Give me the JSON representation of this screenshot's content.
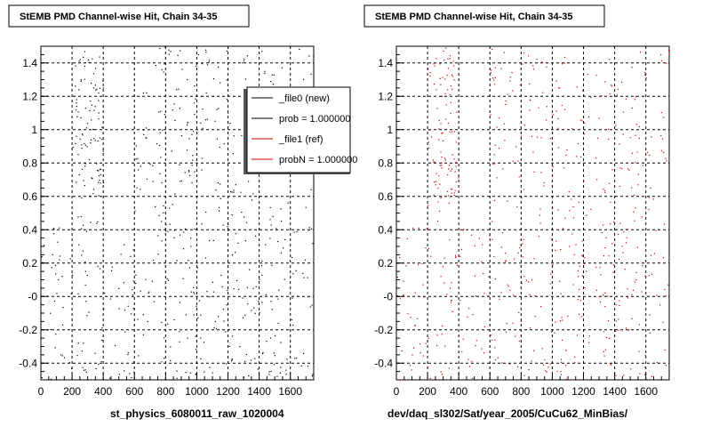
{
  "chart_data": [
    {
      "type": "scatter",
      "title": "StEMB PMD Channel-wise Hit, Chain 34-35",
      "xlabel": "st_physics_6080011_raw_1020004",
      "ylabel": "",
      "xlim": [
        0,
        1750
      ],
      "ylim": [
        -0.5,
        1.5
      ],
      "xticks": [
        "0",
        "200",
        "400",
        "600",
        "800",
        "1000",
        "1200",
        "1400",
        "1600"
      ],
      "yticks": [
        "-0.4",
        "-0.2",
        "-0",
        "0.2",
        "0.4",
        "0.6",
        "0.8",
        "1",
        "1.2",
        "1.4"
      ],
      "grid": true,
      "marker_color": "#000000",
      "legend": {
        "placement": "top-right",
        "entries": [
          {
            "label": "_file0 (new)",
            "color": "#000000"
          },
          {
            "label": "prob = 1.000000",
            "color": "#000000"
          },
          {
            "label": "_file1 (ref)",
            "color": "#cc0000"
          },
          {
            "label": "probN = 1.000000",
            "color": "#cc0000"
          }
        ]
      },
      "regions": [
        {
          "x": [
            0,
            200
          ],
          "y": [
            -0.5,
            0.45
          ],
          "density": 0.55
        },
        {
          "x": [
            200,
            400
          ],
          "y": [
            0.6,
            1.5
          ],
          "density": 1.6
        },
        {
          "x": [
            200,
            400
          ],
          "y": [
            -0.5,
            0.6
          ],
          "density": 0.5
        },
        {
          "x": [
            400,
            600
          ],
          "y": [
            -0.5,
            0.45
          ],
          "density": 0.5
        },
        {
          "x": [
            600,
            1200
          ],
          "y": [
            -0.5,
            1.5
          ],
          "density": 0.55
        },
        {
          "x": [
            1200,
            1750
          ],
          "y": [
            -0.5,
            1.5
          ],
          "density": 0.5
        }
      ]
    },
    {
      "type": "scatter",
      "title": "StEMB PMD Channel-wise Hit, Chain 34-35",
      "xlabel": "dev/daq_sl302/Sat/year_2005/CuCu62_MinBias/",
      "ylabel": "",
      "xlim": [
        0,
        1750
      ],
      "ylim": [
        -0.5,
        1.5
      ],
      "xticks": [
        "0",
        "200",
        "400",
        "600",
        "800",
        "1000",
        "1200",
        "1400",
        "1600"
      ],
      "yticks": [
        "-0.4",
        "-0.2",
        "-0",
        "0.2",
        "0.4",
        "0.6",
        "0.8",
        "1",
        "1.2",
        "1.4"
      ],
      "grid": true,
      "marker_color": "#cc0000",
      "regions": [
        {
          "x": [
            0,
            200
          ],
          "y": [
            -0.5,
            0.45
          ],
          "density": 0.55
        },
        {
          "x": [
            200,
            400
          ],
          "y": [
            0.6,
            1.5
          ],
          "density": 1.6
        },
        {
          "x": [
            200,
            400
          ],
          "y": [
            -0.5,
            0.6
          ],
          "density": 0.5
        },
        {
          "x": [
            400,
            600
          ],
          "y": [
            -0.5,
            0.45
          ],
          "density": 0.5
        },
        {
          "x": [
            600,
            1200
          ],
          "y": [
            -0.5,
            1.5
          ],
          "density": 0.55
        },
        {
          "x": [
            1200,
            1750
          ],
          "y": [
            -0.5,
            1.5
          ],
          "density": 0.5
        }
      ]
    }
  ]
}
